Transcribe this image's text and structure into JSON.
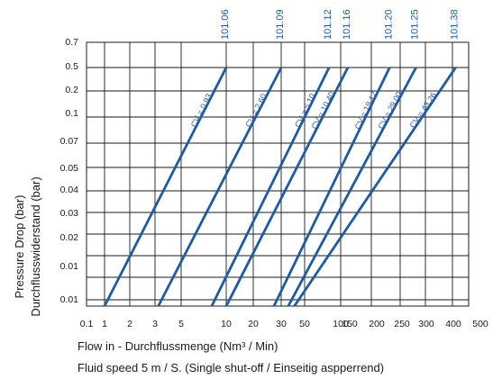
{
  "chart_data": {
    "type": "line",
    "title": "",
    "xlabel": "Flow in - Durchflussmenge (Nm³ / Min)",
    "ylabel": [
      "Pressure Drop (bar)",
      "Durchflusswiderstand (bar)"
    ],
    "footnote": "Fluid speed 5 m / S. (Single shut-off / Einseitig aspperrend)",
    "x_ticks": [
      "0.1",
      "1",
      "2",
      "3",
      "5",
      "10",
      "20",
      "30",
      "50",
      "100",
      "150",
      "200",
      "250",
      "300",
      "400",
      "500"
    ],
    "y_ticks": [
      "0.01",
      "0.01",
      "0.02",
      "0.03",
      "0.04",
      "0.05",
      "0.07",
      "0.1",
      "0.2",
      "0.5",
      "0.7"
    ],
    "grid": true,
    "line_color": "#1f5aa6",
    "series": [
      {
        "name": "101.06",
        "cv": "CV = 0.93",
        "start": [
          1,
          0.01
        ],
        "end": [
          10,
          0.5
        ]
      },
      {
        "name": "101.09",
        "cv": "CV = 2.60",
        "start": [
          3.2,
          0.01
        ],
        "end": [
          30,
          0.5
        ]
      },
      {
        "name": "101.12",
        "cv": "CV = 5.10",
        "start": [
          8,
          0.01
        ],
        "end": [
          80,
          0.5
        ]
      },
      {
        "name": "101.16",
        "cv": "CV = 10.40",
        "start": [
          10,
          0.01
        ],
        "end": [
          110,
          0.5
        ]
      },
      {
        "name": "101.20",
        "cv": "CV = 19.12",
        "start": [
          27,
          0.01
        ],
        "end": [
          180,
          0.5
        ]
      },
      {
        "name": "101.25",
        "cv": "CV = 29.00",
        "start": [
          35,
          0.01
        ],
        "end": [
          230,
          0.5
        ]
      },
      {
        "name": "101.38",
        "cv": "CV = 43.26",
        "start": [
          40,
          0.01
        ],
        "end": [
          310,
          0.5
        ]
      }
    ]
  }
}
